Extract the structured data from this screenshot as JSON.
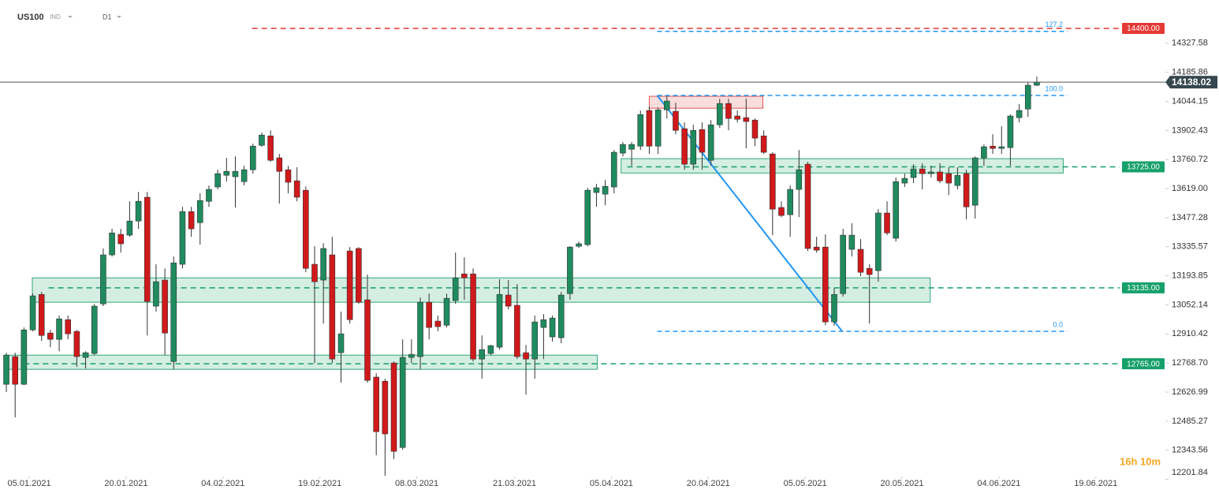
{
  "header": {
    "symbol": "US100",
    "market": "IND",
    "timeframe": "D1"
  },
  "timer": "16h 10m",
  "chart_data": {
    "type": "candlestick",
    "up_color": "#1f8b5f",
    "down_color": "#d0191b",
    "xlim": [
      -0.72,
      131.6
    ],
    "ylim": [
      12215.5,
      14538.5
    ],
    "xticks": [
      {
        "value": 2.6,
        "label": "05.01.2021"
      },
      {
        "value": 13.6,
        "label": "20.01.2021"
      },
      {
        "value": 24.6,
        "label": "04.02.2021"
      },
      {
        "value": 35.6,
        "label": "19.02.2021"
      },
      {
        "value": 46.6,
        "label": "08.03.2021"
      },
      {
        "value": 57.7,
        "label": "21.03.2021"
      },
      {
        "value": 68.7,
        "label": "05.04.2021"
      },
      {
        "value": 79.7,
        "label": "20.04.2021"
      },
      {
        "value": 90.7,
        "label": "05.05.2021"
      },
      {
        "value": 101.7,
        "label": "20.05.2021"
      },
      {
        "value": 112.7,
        "label": "04.06.2021"
      },
      {
        "value": 123.7,
        "label": "19.06.2021"
      }
    ],
    "yticks": [
      14327.58,
      14185.86,
      14044.15,
      13902.43,
      13760.72,
      {
        "value": 13619,
        "label": "13619.00"
      },
      13477.28,
      13335.57,
      13193.85,
      13052.14,
      12910.42,
      {
        "value": 12768.7,
        "label": "12768.70"
      },
      12626.99,
      12485.27,
      12343.56,
      12201.84
    ],
    "open": [
      12665,
      12800,
      12665,
      12930,
      13103,
      12915,
      12884,
      12980,
      12923,
      12796,
      12815,
      13057,
      13296,
      13396,
      13392,
      13461,
      13577,
      13046,
      13173,
      12776,
      13250,
      13507,
      13453,
      13557,
      13627,
      13684,
      13677,
      13653,
      13711,
      13830,
      13876,
      13769,
      13711,
      13657,
      13611,
      13250,
      13173,
      13296,
      12819,
      13315,
      13327,
      13077,
      12700,
      12680,
      12769,
      12357,
      12796,
      12800,
      13065,
      12973,
      12953,
      13073,
      13203,
      13203,
      12788,
      12815,
      12846,
      13100,
      13050,
      12819,
      12788,
      12942,
      12896,
      12892,
      13107,
      13338,
      13346,
      13600,
      13592,
      13627,
      13792,
      13811,
      13826,
      14000,
      13826,
      14003,
      13996,
      13911,
      13738,
      13907,
      13757,
      13930,
      14034,
      13973,
      13965,
      13953,
      13876,
      13788,
      13527,
      13492,
      13615,
      13738,
      13334,
      13334,
      12969,
      13107,
      13323,
      13323,
      13230,
      13219,
      13500,
      13377,
      13646,
      13673,
      13715,
      13692,
      13700,
      13692,
      13634,
      13692,
      13538,
      13769,
      13826,
      13815,
      13819,
      13965,
      14007,
      14123
    ],
    "high": [
      12819,
      12819,
      12942,
      13107,
      13115,
      12930,
      13000,
      13000,
      12930,
      12826,
      13057,
      13327,
      13423,
      13423,
      13557,
      13603,
      13603,
      13250,
      13230,
      13288,
      13530,
      13530,
      13596,
      13634,
      13711,
      13769,
      13776,
      13730,
      13838,
      13892,
      13903,
      13788,
      13730,
      13723,
      13630,
      13338,
      13353,
      13384,
      13019,
      13334,
      13334,
      13200,
      12719,
      12692,
      12776,
      12884,
      12884,
      13088,
      13107,
      13000,
      13107,
      13307,
      13284,
      13230,
      12903,
      12857,
      13177,
      13173,
      13153,
      12857,
      13000,
      13007,
      13000,
      13115,
      13338,
      13361,
      13623,
      13642,
      13661,
      13807,
      13846,
      13846,
      14000,
      14019,
      14015,
      14069,
      14038,
      13942,
      13930,
      13942,
      13953,
      14057,
      14057,
      14000,
      14057,
      13961,
      13903,
      13796,
      13557,
      13634,
      13807,
      13750,
      13384,
      13396,
      13134,
      13423,
      13450,
      13373,
      13250,
      13519,
      13557,
      13673,
      13692,
      13738,
      13742,
      13730,
      13742,
      13723,
      13723,
      13711,
      13776,
      13834,
      13884,
      13923,
      13980,
      14031,
      14138,
      14165
    ],
    "low": [
      12627,
      12504,
      12661,
      12923,
      12876,
      12846,
      12826,
      12884,
      12750,
      12742,
      12807,
      13046,
      13288,
      13307,
      13384,
      13423,
      12903,
      13019,
      12807,
      12738,
      13230,
      13384,
      13346,
      13530,
      13615,
      13653,
      13527,
      13634,
      13692,
      13823,
      13750,
      13546,
      13596,
      13557,
      13211,
      12769,
      12961,
      12769,
      12673,
      12961,
      13057,
      12673,
      12319,
      12219,
      12300,
      12346,
      12769,
      12738,
      12884,
      12923,
      12942,
      13057,
      13077,
      12776,
      12692,
      12807,
      12834,
      13030,
      12788,
      12615,
      12692,
      12788,
      12873,
      12865,
      13077,
      13330,
      13338,
      13530,
      13538,
      13596,
      13776,
      13730,
      13807,
      13788,
      13788,
      13961,
      13884,
      13711,
      13711,
      13711,
      13730,
      13915,
      13903,
      13942,
      13815,
      13826,
      13788,
      13392,
      13480,
      13384,
      13480,
      13315,
      13307,
      12953,
      12950,
      13092,
      13288,
      13192,
      12961,
      13165,
      13392,
      13361,
      13627,
      13646,
      13615,
      13673,
      13646,
      13588,
      13615,
      13469,
      13473,
      13730,
      13788,
      13788,
      13730,
      13942,
      13969,
      14119
    ],
    "close": [
      12807,
      12665,
      12930,
      13096,
      12903,
      12884,
      12984,
      12911,
      12800,
      12819,
      13046,
      13296,
      13403,
      13350,
      13461,
      13557,
      13069,
      13165,
      12915,
      13257,
      13507,
      13423,
      13561,
      13615,
      13692,
      13703,
      13703,
      13711,
      13826,
      13880,
      13757,
      13703,
      13650,
      13577,
      13230,
      13165,
      13327,
      12788,
      12911,
      12980,
      13065,
      12684,
      12434,
      12423,
      12338,
      12796,
      12811,
      13065,
      12942,
      12946,
      13084,
      13184,
      13184,
      12788,
      12834,
      12853,
      13103,
      13046,
      12800,
      12788,
      12969,
      12980,
      12988,
      13100,
      13334,
      13350,
      13611,
      13623,
      13630,
      13796,
      13834,
      13834,
      13980,
      13826,
      14003,
      14046,
      13903,
      13738,
      13903,
      13796,
      13930,
      14034,
      13961,
      13957,
      13946,
      13865,
      13796,
      13519,
      13488,
      13615,
      13711,
      13327,
      13319,
      12969,
      13103,
      13392,
      13392,
      13211,
      13200,
      13500,
      13403,
      13653,
      13669,
      13715,
      13692,
      13700,
      13657,
      13646,
      13684,
      13530,
      13769,
      13823,
      13815,
      13823,
      13973,
      14000,
      14123,
      14138.02
    ],
    "levels": [
      {
        "value": 14400,
        "label": "14400.00",
        "color": "#e53935",
        "x0": 27.9
      },
      {
        "value": 13725,
        "label": "13725.00",
        "color": "#16a06a",
        "x0": 70.5
      },
      {
        "value": 13135,
        "label": "13135.00",
        "color": "#16a06a",
        "x0": 4.8
      },
      {
        "value": 12765,
        "label": "12765.00",
        "color": "#16a06a",
        "x0": 2.0
      }
    ],
    "zones": [
      {
        "top": 13765,
        "bottom": 13695,
        "x0": 69.8,
        "x1": 120.0,
        "color": "#2fa877"
      },
      {
        "top": 13184,
        "bottom": 13065,
        "x0": 2.95,
        "x1": 104.9,
        "color": "#2fa877"
      },
      {
        "top": 12807,
        "bottom": 12738,
        "x0": -0.27,
        "x1": 67.1,
        "color": "#2fa877"
      },
      {
        "top": 14069,
        "bottom": 14011,
        "x0": 73.0,
        "x1": 85.9,
        "color": "#e05555"
      }
    ],
    "fib": {
      "high": 14073,
      "low": 12923,
      "x0": 73.9,
      "x1": 94.9,
      "x_end": 120.5,
      "color": "#2196f3",
      "levels": [
        127.2,
        {
          "value": 100,
          "label": "100.0"
        },
        {
          "value": 0,
          "label": "0.0"
        }
      ]
    }
  }
}
